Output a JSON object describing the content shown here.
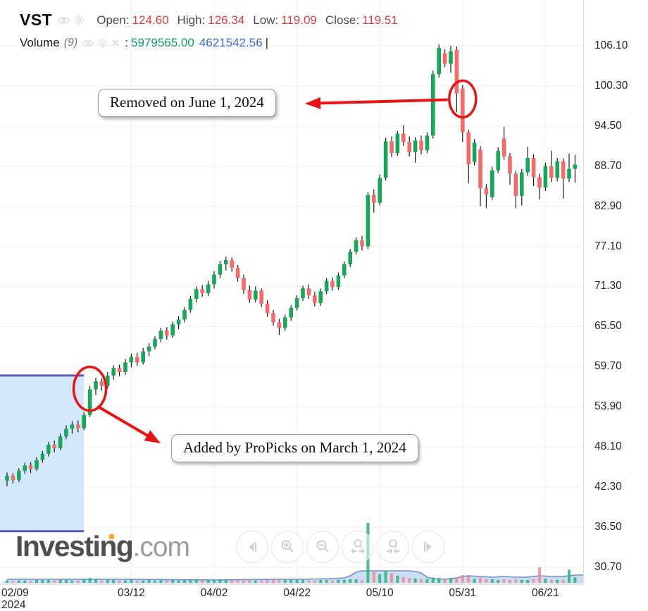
{
  "header": {
    "symbol": "VST",
    "ohlc": [
      {
        "label": "Open:",
        "value": "124.60"
      },
      {
        "label": "High:",
        "value": "126.34"
      },
      {
        "label": "Low:",
        "value": "119.09"
      },
      {
        "label": "Close:",
        "value": "119.51"
      }
    ],
    "indicator": {
      "name": "Volume",
      "period": "(9)",
      "colon": ":",
      "value_green": "5979565.00",
      "value_blue": "4621542.56",
      "cursor": "|"
    }
  },
  "annotations": {
    "removed": {
      "text": "Removed on June 1, 2024"
    },
    "added": {
      "text": "Added by ProPicks on March 1, 2024"
    }
  },
  "logo": {
    "brand": "Investing",
    "tld": ".com"
  },
  "nav": {
    "buttons": [
      {
        "name": "pan-left"
      },
      {
        "name": "zoom-in"
      },
      {
        "name": "zoom-out"
      },
      {
        "name": "zoom-extend"
      },
      {
        "name": "zoom-contract"
      },
      {
        "name": "pan-right"
      }
    ]
  },
  "colors": {
    "candle_up": "#17a65a",
    "candle_down": "#f7696a",
    "wick": "#1b1b1b",
    "annotation_red": "#e91313",
    "highlight_fill": "#c7e2f8",
    "highlight_line": "#5b5bbd",
    "volume_up": "#2bb371",
    "volume_down": "#f58a8a",
    "ma_fill": "#aac8ef",
    "ma_line": "#6f8fd8",
    "ohlc_value": "#e03c3c",
    "vol_green": "#0aa05c",
    "vol_blue": "#3a66d9"
  },
  "chart_data": {
    "type": "candlestick+volume",
    "title": "VST daily candlestick chart with ProPicks add/remove annotations",
    "grid": true,
    "ylim": [
      30.7,
      106.1
    ],
    "y_axis": {
      "ticks": [
        106.1,
        100.3,
        94.5,
        88.7,
        82.9,
        77.1,
        71.3,
        65.5,
        59.7,
        53.9,
        48.1,
        42.3,
        36.5,
        30.7
      ]
    },
    "x_axis": {
      "ticks": [
        {
          "label": "02/09",
          "sub": "2024",
          "day": 0
        },
        {
          "label": "03/12",
          "day": 21
        },
        {
          "label": "04/02",
          "day": 35
        },
        {
          "label": "04/22",
          "day": 49
        },
        {
          "label": "05/10",
          "day": 63
        },
        {
          "label": "05/31",
          "day": 77
        },
        {
          "label": "06/21",
          "day": 91
        }
      ]
    },
    "highlight_region": {
      "start_day": 0,
      "end_day": 14,
      "price_top": 58.4,
      "price_bottom": 35.9
    },
    "events": {
      "added": {
        "day": 14,
        "price": 56.5,
        "label": "Added by ProPicks on March 1, 2024"
      },
      "removed": {
        "day": 77,
        "price": 98.4,
        "label": "Removed on June 1, 2024"
      }
    },
    "volume_ma": [
      [
        0,
        5
      ],
      [
        20,
        5
      ],
      [
        35,
        4
      ],
      [
        45,
        5
      ],
      [
        50,
        5
      ],
      [
        55,
        6
      ],
      [
        57,
        7
      ],
      [
        58,
        10
      ],
      [
        59,
        15
      ],
      [
        60,
        17
      ],
      [
        62,
        17
      ],
      [
        68,
        17
      ],
      [
        69,
        16
      ],
      [
        70,
        14
      ],
      [
        71,
        8
      ],
      [
        72,
        6
      ],
      [
        74,
        5
      ],
      [
        76,
        7
      ],
      [
        77,
        9
      ],
      [
        78,
        10
      ],
      [
        80,
        9
      ],
      [
        82,
        8
      ],
      [
        84,
        9
      ],
      [
        86,
        8
      ],
      [
        88,
        8
      ],
      [
        90,
        10
      ],
      [
        92,
        9
      ],
      [
        94,
        9
      ],
      [
        96,
        11
      ]
    ],
    "candles": {
      "columns": [
        "date",
        "open",
        "high",
        "low",
        "close",
        "volume"
      ],
      "rows": [
        [
          "02/09",
          43.2,
          44.4,
          42.4,
          43.9,
          4
        ],
        [
          "02/12",
          43.9,
          44.3,
          42.8,
          43.3,
          3
        ],
        [
          "02/13",
          43.3,
          45.0,
          43.0,
          44.6,
          4
        ],
        [
          "02/14",
          44.6,
          45.8,
          44.2,
          45.4,
          4
        ],
        [
          "02/15",
          45.4,
          45.9,
          44.3,
          44.9,
          3
        ],
        [
          "02/16",
          44.9,
          46.6,
          44.6,
          46.2,
          5
        ],
        [
          "02/20",
          46.2,
          47.5,
          45.8,
          47.1,
          5
        ],
        [
          "02/21",
          47.1,
          48.8,
          46.7,
          48.4,
          5
        ],
        [
          "02/22",
          48.4,
          49.0,
          47.3,
          47.9,
          4
        ],
        [
          "02/23",
          47.9,
          50.0,
          47.6,
          49.6,
          5
        ],
        [
          "02/26",
          49.6,
          51.2,
          49.2,
          50.7,
          5
        ],
        [
          "02/27",
          50.7,
          51.8,
          50.0,
          51.3,
          4
        ],
        [
          "02/28",
          51.3,
          51.9,
          50.2,
          50.8,
          4
        ],
        [
          "02/29",
          50.8,
          53.1,
          50.5,
          52.7,
          6
        ],
        [
          "03/01",
          52.7,
          56.9,
          52.4,
          56.4,
          8
        ],
        [
          "03/04",
          56.4,
          58.1,
          55.6,
          57.6,
          6
        ],
        [
          "03/05",
          57.6,
          58.0,
          56.2,
          56.9,
          4
        ],
        [
          "03/06",
          56.9,
          58.9,
          56.5,
          58.4,
          5
        ],
        [
          "03/07",
          58.4,
          59.9,
          57.8,
          59.5,
          5
        ],
        [
          "03/08",
          59.5,
          60.0,
          58.3,
          58.9,
          4
        ],
        [
          "03/11",
          58.9,
          60.8,
          58.5,
          60.3,
          4
        ],
        [
          "03/12",
          60.3,
          61.6,
          59.6,
          61.1,
          5
        ],
        [
          "03/13",
          61.1,
          61.7,
          59.8,
          60.3,
          4
        ],
        [
          "03/14",
          60.3,
          62.4,
          60.0,
          61.9,
          4
        ],
        [
          "03/15",
          61.9,
          63.1,
          61.2,
          62.6,
          5
        ],
        [
          "03/18",
          62.6,
          64.1,
          62.2,
          63.7,
          4
        ],
        [
          "03/19",
          63.7,
          65.3,
          63.2,
          64.9,
          5
        ],
        [
          "03/20",
          64.9,
          65.4,
          63.6,
          64.2,
          4
        ],
        [
          "03/21",
          64.2,
          66.2,
          63.9,
          65.8,
          5
        ],
        [
          "03/22",
          65.8,
          67.0,
          65.1,
          66.5,
          4
        ],
        [
          "03/25",
          66.5,
          68.3,
          66.1,
          67.9,
          5
        ],
        [
          "03/26",
          67.9,
          69.9,
          67.5,
          69.5,
          5
        ],
        [
          "03/27",
          69.5,
          71.3,
          69.0,
          70.9,
          6
        ],
        [
          "03/28",
          70.9,
          71.5,
          69.8,
          70.3,
          4
        ],
        [
          "04/01",
          70.3,
          72.1,
          69.9,
          71.6,
          5
        ],
        [
          "04/02",
          71.6,
          73.5,
          71.0,
          73.0,
          5
        ],
        [
          "04/03",
          73.0,
          75.0,
          72.5,
          74.5,
          6
        ],
        [
          "04/04",
          74.5,
          75.6,
          73.6,
          75.1,
          5
        ],
        [
          "04/05",
          75.1,
          75.5,
          73.4,
          74.0,
          4
        ],
        [
          "04/08",
          74.0,
          74.4,
          72.0,
          72.5,
          4
        ],
        [
          "04/09",
          72.5,
          73.0,
          70.2,
          70.8,
          5
        ],
        [
          "04/10",
          70.8,
          71.4,
          68.9,
          69.4,
          5
        ],
        [
          "04/11",
          69.4,
          71.3,
          69.0,
          70.7,
          4
        ],
        [
          "04/12",
          70.7,
          71.0,
          68.3,
          68.8,
          4
        ],
        [
          "04/15",
          68.8,
          69.3,
          66.9,
          67.4,
          5
        ],
        [
          "04/16",
          67.4,
          67.9,
          65.6,
          66.1,
          5
        ],
        [
          "04/17",
          66.1,
          66.6,
          64.3,
          65.3,
          6
        ],
        [
          "04/18",
          65.3,
          67.2,
          64.9,
          66.8,
          5
        ],
        [
          "04/19",
          66.8,
          68.6,
          66.3,
          68.2,
          5
        ],
        [
          "04/22",
          68.2,
          70.0,
          67.8,
          69.6,
          5
        ],
        [
          "04/23",
          69.6,
          71.4,
          69.2,
          71.0,
          5
        ],
        [
          "04/24",
          71.0,
          71.6,
          69.5,
          70.0,
          4
        ],
        [
          "04/25",
          70.0,
          70.5,
          68.4,
          68.9,
          4
        ],
        [
          "04/26",
          68.9,
          71.0,
          68.5,
          70.6,
          5
        ],
        [
          "04/29",
          70.6,
          72.5,
          70.2,
          72.1,
          5
        ],
        [
          "04/30",
          72.1,
          72.6,
          70.7,
          71.2,
          4
        ],
        [
          "05/01",
          71.2,
          73.3,
          70.8,
          72.9,
          5
        ],
        [
          "05/02",
          72.9,
          74.9,
          72.5,
          74.5,
          5
        ],
        [
          "05/03",
          74.5,
          76.7,
          74.1,
          76.3,
          6
        ],
        [
          "05/06",
          76.3,
          78.4,
          75.9,
          78.0,
          6
        ],
        [
          "05/07",
          78.0,
          78.6,
          76.5,
          77.1,
          4
        ],
        [
          "05/08",
          77.1,
          85.0,
          76.7,
          84.5,
          100
        ],
        [
          "05/09",
          84.5,
          85.3,
          82.0,
          83.4,
          18
        ],
        [
          "05/10",
          83.4,
          87.5,
          83.0,
          87.0,
          14
        ],
        [
          "05/13",
          87.0,
          92.8,
          86.6,
          92.3,
          20
        ],
        [
          "05/14",
          92.3,
          93.0,
          90.0,
          90.6,
          16
        ],
        [
          "05/15",
          90.6,
          93.8,
          90.2,
          93.4,
          12
        ],
        [
          "05/16",
          93.4,
          94.6,
          91.6,
          92.2,
          10
        ],
        [
          "05/17",
          92.2,
          93.0,
          90.1,
          90.7,
          8
        ],
        [
          "05/20",
          90.7,
          92.9,
          89.2,
          92.4,
          7
        ],
        [
          "05/21",
          92.4,
          93.1,
          90.4,
          91.0,
          6
        ],
        [
          "05/22",
          91.0,
          93.6,
          90.6,
          93.1,
          6
        ],
        [
          "05/23",
          93.1,
          102.5,
          92.7,
          102.0,
          9
        ],
        [
          "05/24",
          102.0,
          106.3,
          101.5,
          105.8,
          8
        ],
        [
          "05/28",
          105.0,
          105.6,
          103.0,
          103.5,
          6
        ],
        [
          "05/29",
          103.5,
          106.1,
          102.2,
          105.3,
          7
        ],
        [
          "05/30",
          105.5,
          106.0,
          96.5,
          99.2,
          9
        ],
        [
          "05/31",
          99.9,
          100.4,
          92.2,
          93.6,
          13
        ],
        [
          "06/03",
          93.6,
          94.0,
          86.2,
          89.0,
          11
        ],
        [
          "06/04",
          89.3,
          92.6,
          88.8,
          92.1,
          7
        ],
        [
          "06/05",
          91.1,
          91.6,
          82.9,
          85.5,
          9
        ],
        [
          "06/06",
          85.5,
          86.1,
          82.6,
          84.6,
          6
        ],
        [
          "06/07",
          84.2,
          88.6,
          83.8,
          88.1,
          6
        ],
        [
          "06/10",
          88.1,
          91.4,
          87.7,
          90.9,
          5
        ],
        [
          "06/11",
          92.7,
          94.4,
          89.6,
          90.1,
          6
        ],
        [
          "06/12",
          90.1,
          90.6,
          86.0,
          87.6,
          5
        ],
        [
          "06/13",
          87.6,
          88.0,
          82.6,
          84.4,
          6
        ],
        [
          "06/14",
          84.4,
          88.3,
          83.0,
          87.8,
          5
        ],
        [
          "06/17",
          87.8,
          91.5,
          87.3,
          89.9,
          5
        ],
        [
          "06/18",
          89.9,
          90.4,
          85.8,
          87.1,
          6
        ],
        [
          "06/20",
          87.1,
          87.6,
          83.9,
          85.6,
          26
        ],
        [
          "06/21",
          85.6,
          89.2,
          85.1,
          88.7,
          7
        ],
        [
          "06/24",
          88.7,
          90.9,
          86.4,
          87.0,
          5
        ],
        [
          "06/25",
          87.0,
          89.9,
          86.5,
          89.4,
          5
        ],
        [
          "06/26",
          89.4,
          89.8,
          84.0,
          86.9,
          5
        ],
        [
          "06/27",
          86.9,
          90.5,
          86.4,
          88.3,
          22
        ],
        [
          "06/28",
          88.3,
          90.3,
          86.3,
          88.9,
          9
        ]
      ]
    }
  }
}
